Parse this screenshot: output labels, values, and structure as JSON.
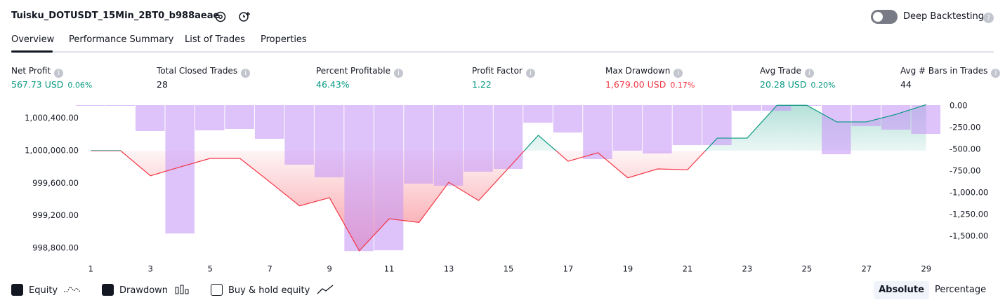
{
  "header": {
    "title": "Tuisku_DOTUSDT_15Min_2BT0_b988aeae",
    "toggle_label": "Deep Backtesting"
  },
  "tabs": [
    "Overview",
    "Performance Summary",
    "List of Trades",
    "Properties"
  ],
  "metrics": [
    {
      "label": "Net Profit",
      "value": "567.73 USD",
      "percent": "0.06%"
    },
    {
      "label": "Total Closed Trades",
      "value": "28"
    },
    {
      "label": "Percent Profitable",
      "value": "46.43%"
    },
    {
      "label": "Profit Factor",
      "value": "1.22"
    },
    {
      "label": "Max Drawdown",
      "value": "1,679.00 USD",
      "percent": "0.17%"
    },
    {
      "label": "Avg Trade",
      "value": "20.28 USD",
      "percent": "0.20%"
    },
    {
      "label": "Avg # Bars in Trades",
      "value": "44"
    }
  ],
  "legend": [
    "Equity",
    "Drawdown",
    "Buy & hold equity"
  ],
  "modes": [
    "Absolute",
    "Percentage"
  ],
  "chart_data": {
    "type": "equity_drawdown",
    "x": [
      1,
      2,
      3,
      4,
      5,
      6,
      7,
      8,
      9,
      10,
      11,
      12,
      13,
      14,
      15,
      16,
      17,
      18,
      19,
      20,
      21,
      22,
      23,
      24,
      25,
      26,
      27,
      28,
      29
    ],
    "xlim": [
      0.5,
      29.5
    ],
    "xticks": [
      1,
      3,
      5,
      7,
      9,
      11,
      13,
      15,
      17,
      19,
      21,
      23,
      25,
      27,
      29
    ],
    "ylim": [
      998660,
      1000562
    ],
    "yticks": [
      {
        "value": 998800,
        "label": "998,800.00"
      },
      {
        "value": 999200,
        "label": "999,200.00"
      },
      {
        "value": 999600,
        "label": "999,600.00"
      },
      {
        "value": 1000000,
        "label": "1,000,000.00"
      },
      {
        "value": 1000400,
        "label": "1,000,400.00"
      }
    ],
    "y2lim": [
      -1774,
      0
    ],
    "y2ticks": [
      {
        "value": 0,
        "label": "0.00"
      },
      {
        "value": -250,
        "label": "-250.00"
      },
      {
        "value": -500,
        "label": "-500.00"
      },
      {
        "value": -750,
        "label": "-750.00"
      },
      {
        "value": -1000,
        "label": "-1,000.00"
      },
      {
        "value": -1250,
        "label": "-1,250.00"
      },
      {
        "value": -1500,
        "label": "-1,500.00"
      }
    ],
    "grid": false,
    "series": [
      {
        "name": "Equity",
        "color": "#f23645",
        "color_above": "#089981",
        "values": [
          1000000,
          1000000,
          999690,
          999800,
          999905,
          999905,
          999615,
          999320,
          999420,
          998765,
          999160,
          999115,
          999610,
          999385,
          999785,
          1000190,
          999870,
          999975,
          999665,
          999775,
          999765,
          1000155,
          1000155,
          1000560,
          1000560,
          1000355,
          1000355,
          1000450,
          1000568
        ]
      },
      {
        "name": "Drawdown",
        "color": "#c89af7",
        "axis": "y2",
        "values": [
          0,
          0,
          -298,
          -1476,
          -290,
          -274,
          -387,
          -685,
          -830,
          -1679,
          -1670,
          -903,
          -927,
          -766,
          -734,
          -202,
          -315,
          -621,
          -524,
          -556,
          -460,
          -460,
          -65,
          -65,
          0,
          -565,
          -242,
          -282,
          -331
        ]
      }
    ]
  }
}
